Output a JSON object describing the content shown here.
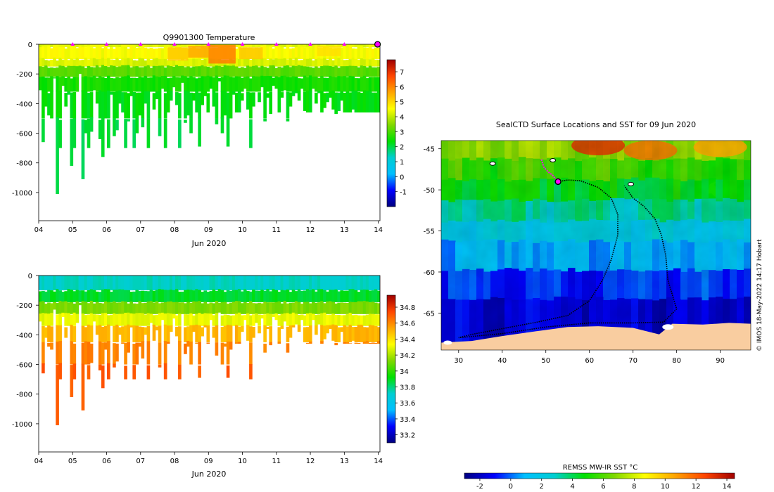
{
  "colors": {
    "jet_stops": [
      "#00007f",
      "#0000ff",
      "#00bfff",
      "#00ced1",
      "#00e000",
      "#7fd800",
      "#ffff00",
      "#ffa500",
      "#ff4500",
      "#a00000"
    ],
    "land": "#f9cda0",
    "track": "#000000",
    "profile_marker": "#ff00ff"
  },
  "chart_data": [
    {
      "id": "temperature",
      "type": "heatmap",
      "title": "Q9901300  Temperature",
      "xlabel": "Jun 2020",
      "ylabel": "",
      "xlim": [
        4,
        14.05
      ],
      "ylim": [
        -1190,
        0
      ],
      "xticks": [
        4,
        5,
        6,
        7,
        8,
        9,
        10,
        11,
        12,
        13,
        14
      ],
      "xtick_labels": [
        "04",
        "05",
        "06",
        "07",
        "08",
        "09",
        "10",
        "11",
        "12",
        "13",
        "14"
      ],
      "yticks": [
        0,
        -200,
        -400,
        -600,
        -800,
        -1000
      ],
      "ytick_labels": [
        "0",
        "-200",
        "-400",
        "-600",
        "-800",
        "-1000"
      ],
      "colorbar": {
        "range": [
          -2,
          7.8
        ],
        "ticks": [
          -1,
          0,
          1,
          2,
          3,
          4,
          5,
          6,
          7
        ],
        "tick_labels": [
          "-1",
          "0",
          "1",
          "2",
          "3",
          "4",
          "5",
          "6",
          "7"
        ]
      },
      "profile_markers_x": [
        5,
        6,
        7,
        8,
        9,
        10,
        11,
        12,
        13
      ],
      "last_profile_x": 14,
      "layers": [
        {
          "depth_from": 0,
          "depth_to": 20,
          "value": 4.3
        },
        {
          "depth_from": 20,
          "depth_to": 100,
          "value": 4.5
        },
        {
          "depth_from": 100,
          "depth_to": 150,
          "value": 4.2
        },
        {
          "depth_from": 150,
          "depth_to": 220,
          "value": 3.1
        },
        {
          "depth_from": 220,
          "depth_to": 320,
          "value": 2.5
        },
        {
          "depth_from": 320,
          "depth_to": 500,
          "value": 2.3
        },
        {
          "depth_from": 500,
          "depth_to": 1100,
          "value": 2.05
        }
      ],
      "warm_patches": [
        {
          "x_from": 8.4,
          "x_to": 9.0,
          "depth_from": 10,
          "depth_to": 90,
          "value": 5.6
        },
        {
          "x_from": 9.0,
          "x_to": 9.8,
          "depth_from": 5,
          "depth_to": 130,
          "value": 6.1
        },
        {
          "x_from": 7.8,
          "x_to": 8.4,
          "depth_from": 20,
          "depth_to": 110,
          "value": 5.2
        },
        {
          "x_from": 9.9,
          "x_to": 10.6,
          "depth_from": 20,
          "depth_to": 100,
          "value": 5.2
        },
        {
          "x_from": 12.2,
          "x_to": 12.9,
          "depth_from": 10,
          "depth_to": 80,
          "value": 4.9
        }
      ]
    },
    {
      "id": "salinity",
      "type": "heatmap",
      "title": "",
      "xlabel": "Jun 2020",
      "ylabel": "",
      "xlim": [
        4,
        14.05
      ],
      "ylim": [
        -1190,
        0
      ],
      "xticks": [
        4,
        5,
        6,
        7,
        8,
        9,
        10,
        11,
        12,
        13,
        14
      ],
      "xtick_labels": [
        "04",
        "05",
        "06",
        "07",
        "08",
        "09",
        "10",
        "11",
        "12",
        "13",
        "14"
      ],
      "yticks": [
        0,
        -200,
        -400,
        -600,
        -800,
        -1000
      ],
      "ytick_labels": [
        "0",
        "-200",
        "-400",
        "-600",
        "-800",
        "-1000"
      ],
      "colorbar": {
        "range": [
          33.1,
          34.95
        ],
        "ticks": [
          33.2,
          33.4,
          33.6,
          33.8,
          34,
          34.2,
          34.4,
          34.6,
          34.8
        ],
        "tick_labels": [
          "33.2",
          "33.4",
          "33.6",
          "33.8",
          "34",
          "34.2",
          "34.4",
          "34.6",
          "34.8"
        ]
      },
      "layers": [
        {
          "depth_from": 0,
          "depth_to": 100,
          "value": 33.73
        },
        {
          "depth_from": 100,
          "depth_to": 180,
          "value": 33.88
        },
        {
          "depth_from": 180,
          "depth_to": 260,
          "value": 34.12
        },
        {
          "depth_from": 260,
          "depth_to": 340,
          "value": 34.3
        },
        {
          "depth_from": 340,
          "depth_to": 450,
          "value": 34.5
        },
        {
          "depth_from": 450,
          "depth_to": 600,
          "value": 34.62
        },
        {
          "depth_from": 600,
          "depth_to": 1100,
          "value": 34.7
        }
      ]
    },
    {
      "id": "sst_map",
      "type": "heatmap",
      "title": "SealCTD Surface Locations and SST for 09 Jun 2020",
      "xlim": [
        26,
        97
      ],
      "ylim": [
        -69.5,
        -44
      ],
      "xticks": [
        30,
        40,
        50,
        60,
        70,
        80,
        90
      ],
      "xtick_labels": [
        "30",
        "40",
        "50",
        "60",
        "70",
        "80",
        "90"
      ],
      "yticks": [
        -45,
        -50,
        -55,
        -60,
        -65
      ],
      "ytick_labels": [
        "-45",
        "-50",
        "-55",
        "-60",
        "-65"
      ],
      "colorbar": {
        "label": "REMSS MW-IR SST °C",
        "range": [
          -3,
          14.5
        ],
        "ticks": [
          -2,
          0,
          2,
          4,
          6,
          8,
          10,
          12,
          14
        ],
        "tick_labels": [
          "-2",
          "0",
          "2",
          "4",
          "6",
          "8",
          "10",
          "12",
          "14"
        ]
      },
      "credit": "© IMOS 18-May-2022 14:17 Hobart",
      "sst_bands": [
        {
          "lat_from": -44,
          "lat_to": -46.5,
          "value": 7.0
        },
        {
          "lat_from": -46.5,
          "lat_to": -49,
          "value": 5.6
        },
        {
          "lat_from": -49,
          "lat_to": -51.5,
          "value": 4.6
        },
        {
          "lat_from": -51.5,
          "lat_to": -54,
          "value": 3.3
        },
        {
          "lat_from": -54,
          "lat_to": -56.5,
          "value": 2.0
        },
        {
          "lat_from": -56.5,
          "lat_to": -60,
          "value": 0.8
        },
        {
          "lat_from": -60,
          "lat_to": -63.5,
          "value": -0.6
        },
        {
          "lat_from": -63.5,
          "lat_to": -69.5,
          "value": -1.6
        }
      ],
      "warm_spots": [
        {
          "lon": 62,
          "lat": -44.6,
          "value": 13.0
        },
        {
          "lon": 74,
          "lat": -45.2,
          "value": 11.5
        },
        {
          "lon": 90,
          "lat": -44.8,
          "value": 10.5
        }
      ],
      "track": [
        [
          52.8,
          -49
        ],
        [
          55,
          -48.8
        ],
        [
          58,
          -48.9
        ],
        [
          62,
          -49.7
        ],
        [
          65,
          -51
        ],
        [
          66.5,
          -53
        ],
        [
          66.5,
          -55.5
        ],
        [
          65,
          -58.5
        ],
        [
          63,
          -61
        ],
        [
          60,
          -63.5
        ],
        [
          55,
          -65.3
        ],
        [
          48,
          -66.1
        ],
        [
          40,
          -66.9
        ],
        [
          33,
          -67.6
        ],
        [
          30,
          -68
        ],
        [
          40,
          -67.5
        ],
        [
          50,
          -66.7
        ],
        [
          60,
          -66.2
        ],
        [
          70,
          -66.2
        ],
        [
          77,
          -66.1
        ],
        [
          80,
          -64.5
        ],
        [
          78,
          -61
        ],
        [
          77.5,
          -58
        ],
        [
          76.5,
          -55.5
        ],
        [
          75,
          -53.5
        ],
        [
          72.5,
          -52
        ],
        [
          70,
          -51
        ],
        [
          68,
          -49.5
        ]
      ],
      "track_tail": [
        [
          49,
          -46.3
        ],
        [
          49.5,
          -47.2
        ],
        [
          50.5,
          -47.8
        ],
        [
          51.5,
          -48.2
        ],
        [
          52.8,
          -49
        ]
      ],
      "track_start": [
        52.8,
        -49
      ],
      "land_coast": [
        [
          26,
          -69.5
        ],
        [
          26,
          -68.6
        ],
        [
          33,
          -68.4
        ],
        [
          40,
          -67.8
        ],
        [
          48,
          -67.2
        ],
        [
          55,
          -66.7
        ],
        [
          62,
          -66.6
        ],
        [
          70,
          -66.8
        ],
        [
          76,
          -67.6
        ],
        [
          79,
          -66.3
        ],
        [
          86,
          -66.4
        ],
        [
          92,
          -66.2
        ],
        [
          97,
          -66.3
        ],
        [
          97,
          -69.5
        ]
      ],
      "islands": [
        [
          69.5,
          -49.3
        ],
        [
          51.6,
          -46.4
        ],
        [
          37.8,
          -46.8
        ]
      ]
    }
  ]
}
